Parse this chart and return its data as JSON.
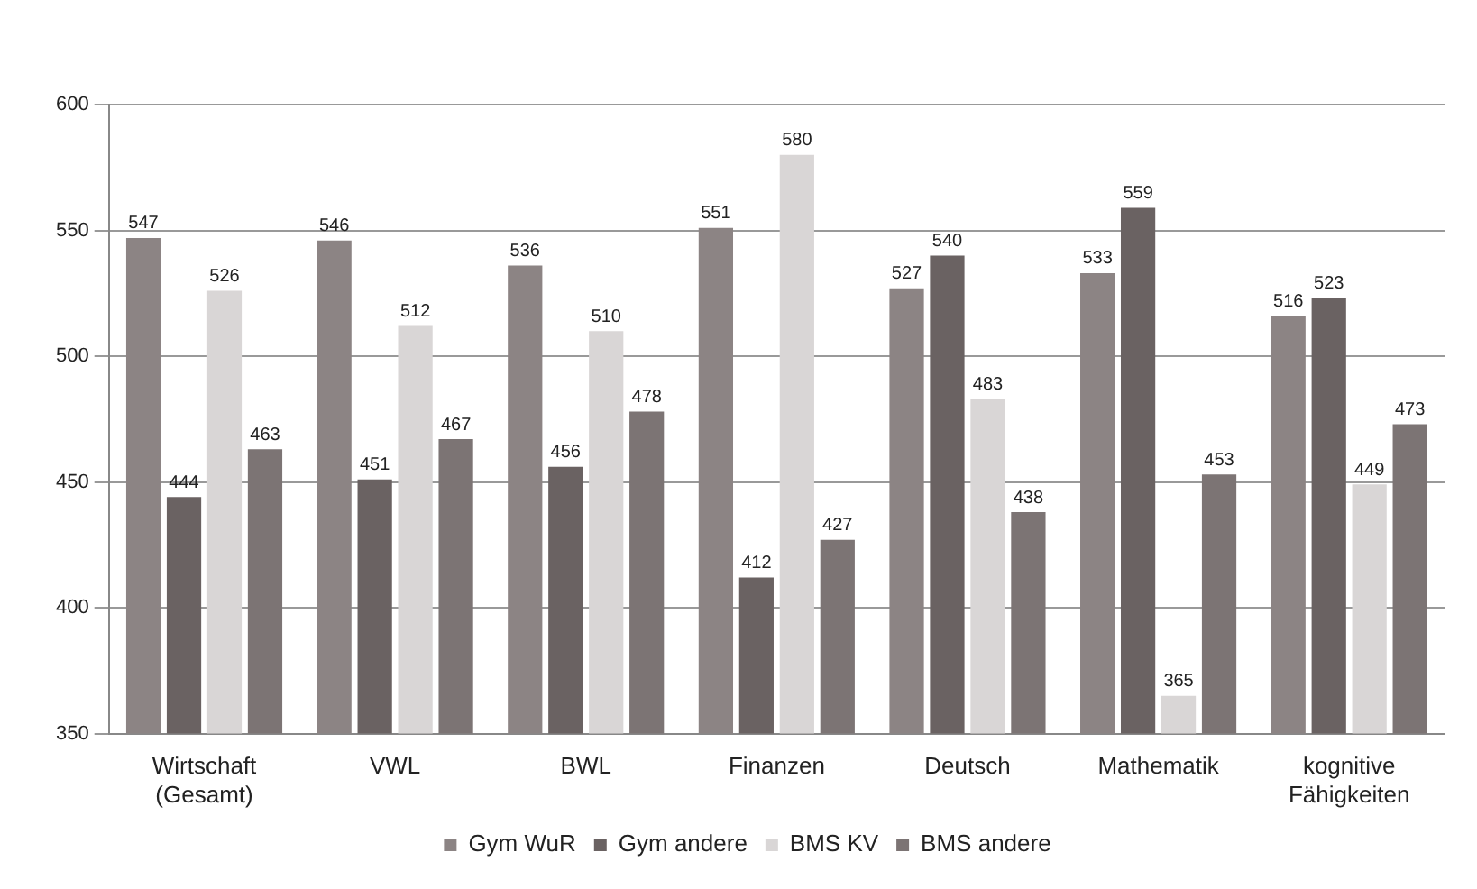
{
  "chart_data": {
    "type": "bar",
    "categories": [
      "Wirtschaft (Gesamt)",
      "VWL",
      "BWL",
      "Finanzen",
      "Deutsch",
      "Mathematik",
      "kognitive Fähigkeiten"
    ],
    "series": [
      {
        "name": "Gym WuR",
        "color": "#8c8484",
        "values": [
          547,
          546,
          536,
          551,
          527,
          533,
          516
        ]
      },
      {
        "name": "Gym andere",
        "color": "#6a6262",
        "values": [
          444,
          451,
          456,
          412,
          540,
          559,
          523
        ]
      },
      {
        "name": "BMS KV",
        "color": "#d9d6d6",
        "values": [
          526,
          512,
          510,
          580,
          483,
          365,
          449
        ]
      },
      {
        "name": "BMS andere",
        "color": "#7c7474",
        "values": [
          463,
          467,
          478,
          427,
          438,
          453,
          473
        ]
      }
    ],
    "ylim": [
      350,
      600
    ],
    "yticks": [
      350,
      400,
      450,
      500,
      550,
      600
    ],
    "grid": "y",
    "legend": "bottom",
    "data_labels": true
  }
}
